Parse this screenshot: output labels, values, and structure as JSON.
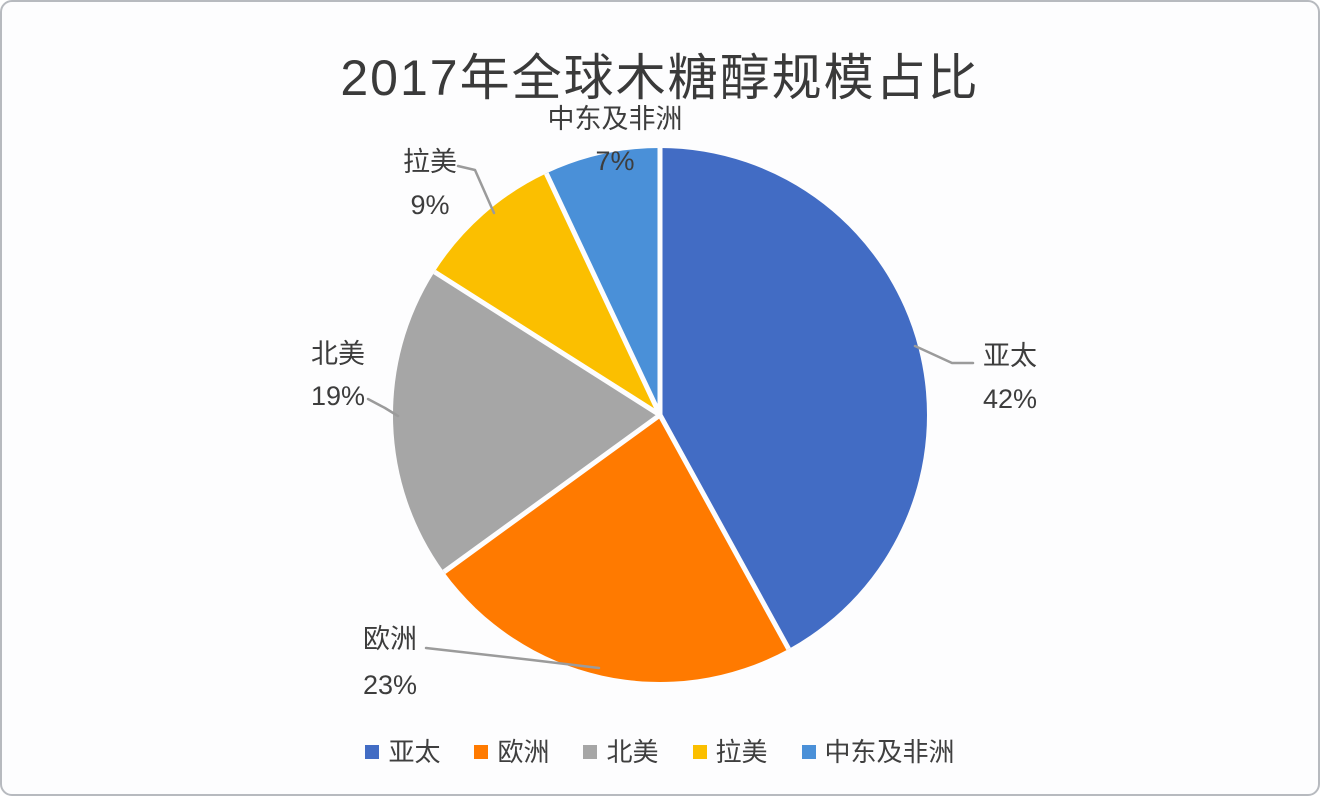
{
  "chart_data": {
    "type": "pie",
    "title": "2017年全球木糖醇规模占比",
    "legend_position": "bottom",
    "start_angle_deg": 0,
    "direction": "clockwise",
    "series": [
      {
        "name": "亚太",
        "value": 42,
        "pct_label": "42%",
        "color": "#426CC4"
      },
      {
        "name": "欧洲",
        "value": 23,
        "pct_label": "23%",
        "color": "#FF7A00"
      },
      {
        "name": "北美",
        "value": 19,
        "pct_label": "19%",
        "color": "#A6A6A6"
      },
      {
        "name": "拉美",
        "value": 9,
        "pct_label": "9%",
        "color": "#FBBF00"
      },
      {
        "name": "中东及非洲",
        "value": 7,
        "pct_label": "7%",
        "color": "#4A90D8"
      }
    ]
  }
}
